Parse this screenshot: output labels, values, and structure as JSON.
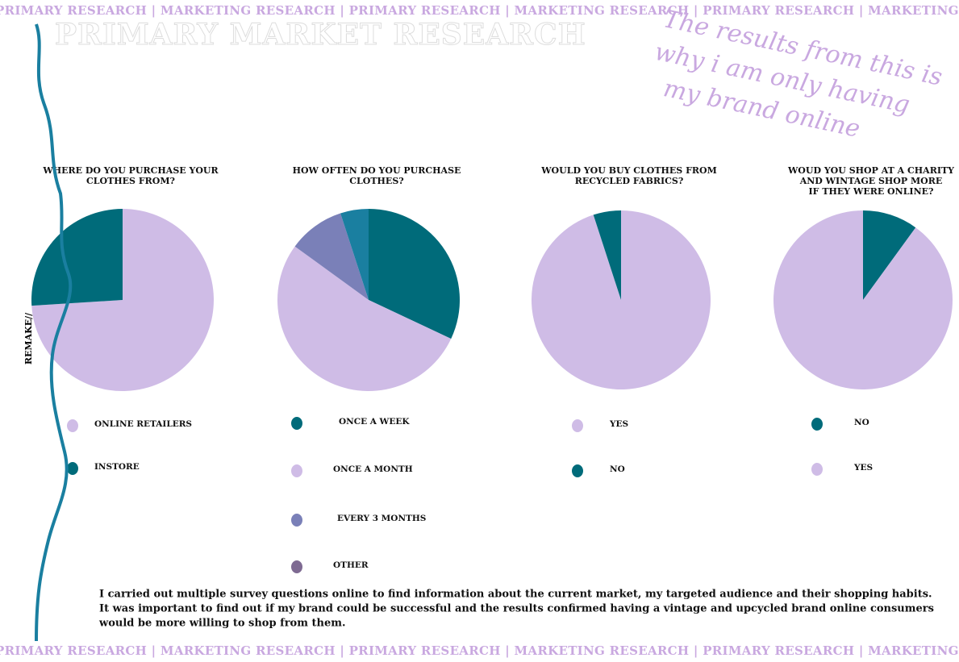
{
  "banner_top": "PRIMARY RESEARCH | MARKETING RESEARCH | PRIMARY RESEARCH | MARKETING RESEARCH | PRIMARY RESEARCH | MARKETING RESEARCH | PRIMARY RESEARCH",
  "banner_bottom": "PRIMARY RESEARCH | MARKETING RESEARCH | PRIMARY RESEARCH | MARKETING RESEARCH | PRIMARY RESEARCH | MARKETING RESEARCH | PRIMARY RESEARCH",
  "heading": "PRIMARY MARKET RESEARCH",
  "note": [
    "The results from this is",
    "why i am only having",
    "my brand online"
  ],
  "side_label": "REMAKE//",
  "paragraph": [
    "I carried out multiple survey questions online to find information about the current market, my targeted audience and their shopping habits.",
    "It was important to find out if my brand could be successful and the results confirmed having a vintage and upcycled brand online consumers",
    "would be more willing to shop from them."
  ],
  "chart_data": [
    {
      "type": "pie",
      "title": [
        "WHERE DO YOU PURCHASE YOUR",
        "CLOTHES FROM?"
      ],
      "categories": [
        "ONLINE RETAILERS",
        "INSTORE"
      ],
      "values": [
        74,
        26
      ],
      "colors": [
        "#cfbce6",
        "#006b7a"
      ],
      "legend_colors": [
        "#cfbce6",
        "#006b7a"
      ]
    },
    {
      "type": "pie",
      "title": [
        "HOW OFTEN DO YOU PURCHASE",
        "CLOTHES?"
      ],
      "categories": [
        "ONCE A WEEK",
        "ONCE A MONTH",
        "EVERY 3 MONTHS",
        "OTHER"
      ],
      "values": [
        32,
        53,
        10,
        5
      ],
      "colors": [
        "#006b7a",
        "#cfbce6",
        "#7a80b8",
        "#1a7fa0"
      ],
      "legend_colors": [
        "#006b7a",
        "#cfbce6",
        "#7a80b8",
        "#7e6a92"
      ]
    },
    {
      "type": "pie",
      "title": [
        "WOULD YOU BUY CLOTHES FROM",
        "RECYCLED FABRICS?"
      ],
      "categories": [
        "YES",
        "NO"
      ],
      "values": [
        95,
        5
      ],
      "colors": [
        "#cfbce6",
        "#006b7a"
      ],
      "legend_colors": [
        "#cfbce6",
        "#006b7a"
      ]
    },
    {
      "type": "pie",
      "title": [
        "WOUD YOU SHOP AT A CHARITY",
        "AND WINTAGE SHOP MORE",
        "IF THEY WERE ONLINE?"
      ],
      "categories": [
        "NO",
        "YES"
      ],
      "values": [
        10,
        90
      ],
      "colors": [
        "#006b7a",
        "#cfbce6"
      ],
      "legend_colors": [
        "#006b7a",
        "#cfbce6"
      ]
    }
  ]
}
